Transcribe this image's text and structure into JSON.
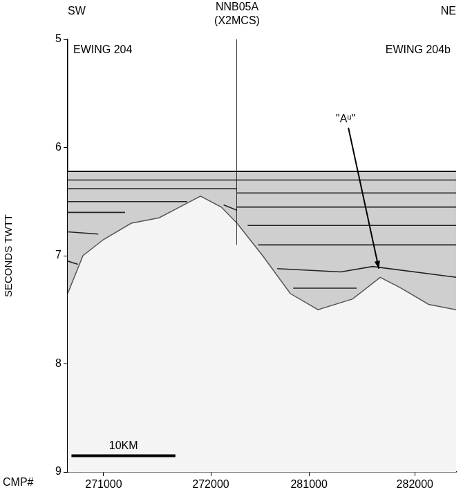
{
  "chart_data": [
    {
      "type": "line",
      "title": "EWING 204",
      "xlabel": "CMP#",
      "ylabel": "SECONDS TWTT",
      "xlim": [
        270665,
        272245
      ],
      "xticks": [
        271000,
        272000
      ],
      "ylim": [
        5,
        9
      ],
      "yticks": [
        5,
        6,
        7,
        8,
        9
      ],
      "grid": false,
      "seafloor": {
        "x": [
          270665,
          272245
        ],
        "values": [
          6.22,
          6.22
        ],
        "color": "#000000"
      },
      "basement": {
        "x": [
          270665,
          270807,
          271000,
          271258,
          271517,
          271710,
          271904,
          272097,
          272245
        ],
        "values": [
          7.35,
          7.0,
          6.85,
          6.7,
          6.65,
          6.55,
          6.45,
          6.55,
          6.7
        ],
        "color": "#555555"
      },
      "reflectors": [
        {
          "x": [
            270665,
            272245
          ],
          "values": [
            6.3,
            6.3
          ],
          "color": "#222222"
        },
        {
          "x": [
            270665,
            272245
          ],
          "values": [
            6.38,
            6.38
          ],
          "color": "#222222"
        },
        {
          "x": [
            270665,
            271780
          ],
          "values": [
            6.5,
            6.5
          ],
          "color": "#222222"
        },
        {
          "x": [
            272120,
            272245
          ],
          "values": [
            6.53,
            6.58
          ],
          "color": "#222222"
        },
        {
          "x": [
            270665,
            271200
          ],
          "values": [
            6.6,
            6.6
          ],
          "color": "#222222"
        },
        {
          "x": [
            270665,
            270950
          ],
          "values": [
            6.78,
            6.8
          ],
          "color": "#222222"
        },
        {
          "x": [
            270665,
            270760
          ],
          "values": [
            7.05,
            7.08
          ],
          "color": "#222222"
        }
      ],
      "scale_bar": {
        "label": "10KM",
        "x": [
          270700,
          271670
        ],
        "y": 8.85
      },
      "crossing_line": {
        "label": "NNB05A (X2MCS)",
        "x": 272245,
        "y": [
          5,
          6.9
        ]
      }
    },
    {
      "type": "line",
      "title": "EWING 204b",
      "tick_labels": "x",
      "xlim": [
        280320,
        282390
      ],
      "xticks": [
        281000,
        282000
      ],
      "ylim": [
        5,
        9
      ],
      "grid": false,
      "seafloor": {
        "x": [
          280320,
          282390
        ],
        "values": [
          6.22,
          6.22
        ],
        "color": "#000000"
      },
      "basement": {
        "x": [
          280320,
          280562,
          280823,
          281085,
          281412,
          281673,
          281869,
          282130,
          282390
        ],
        "values": [
          6.7,
          7.0,
          7.35,
          7.5,
          7.4,
          7.2,
          7.3,
          7.45,
          7.5
        ],
        "color": "#555555"
      },
      "reflectors": [
        {
          "x": [
            280320,
            282390
          ],
          "values": [
            6.3,
            6.3
          ],
          "color": "#222222"
        },
        {
          "x": [
            280320,
            282390
          ],
          "values": [
            6.42,
            6.42
          ],
          "color": "#222222"
        },
        {
          "x": [
            280320,
            282390
          ],
          "values": [
            6.55,
            6.55
          ],
          "color": "#222222"
        },
        {
          "x": [
            280420,
            282390
          ],
          "values": [
            6.72,
            6.72
          ],
          "color": "#222222"
        },
        {
          "x": [
            280520,
            282390
          ],
          "values": [
            6.9,
            6.9
          ],
          "color": "#222222"
        },
        {
          "x": [
            280700,
            281300,
            281600,
            282390
          ],
          "values": [
            7.12,
            7.15,
            7.1,
            7.2
          ],
          "color": "#222222"
        },
        {
          "x": [
            280850,
            281450
          ],
          "values": [
            7.3,
            7.3
          ],
          "color": "#222222"
        }
      ],
      "annotations": [
        {
          "text": "\"Aᵘ\"",
          "x": 281346,
          "y": 5.74,
          "arrow_to": [
            281660,
            7.12
          ]
        }
      ]
    }
  ],
  "orientation": {
    "left": "SW",
    "right": "NE"
  }
}
